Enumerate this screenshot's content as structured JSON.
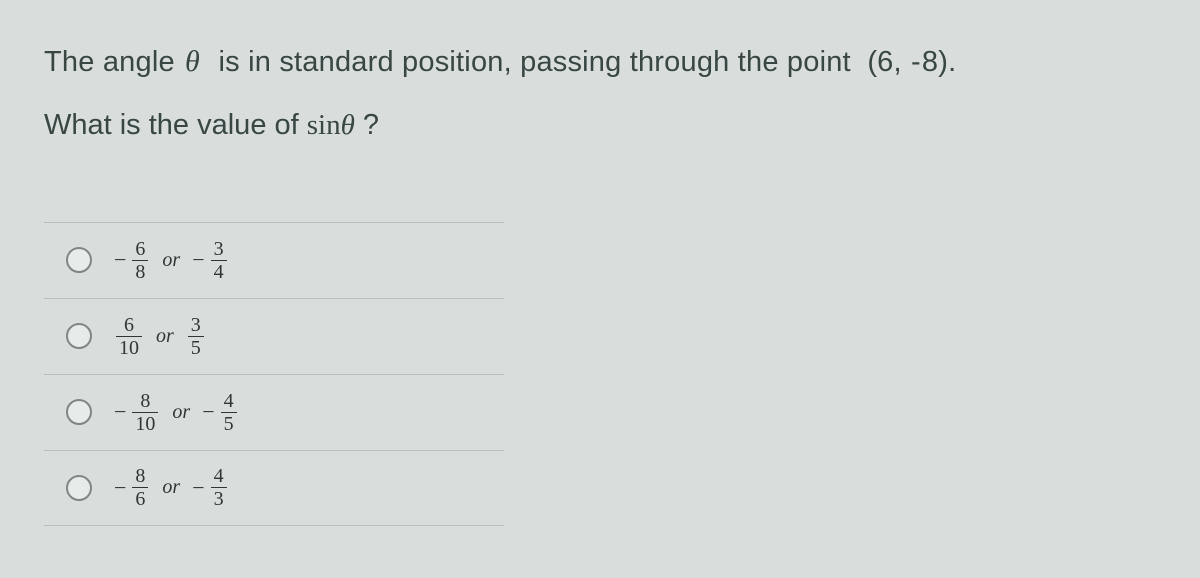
{
  "question": {
    "line1_a": "The angle ",
    "theta": "θ",
    "line1_b": "  is in standard position, passing through the point  ",
    "point_open": "(",
    "point_x": "6",
    "point_sep": ", ",
    "point_y_neg": "-",
    "point_y": "8",
    "point_close": ").",
    "line2_a": "What is the value of ",
    "sin_text": "sin ",
    "qmark": " ?"
  },
  "or_label": "or",
  "options": [
    {
      "first_neg": true,
      "first_num": "6",
      "first_den": "8",
      "second_neg": true,
      "second_num": "3",
      "second_den": "4"
    },
    {
      "first_neg": false,
      "first_num": "6",
      "first_den": "10",
      "second_neg": false,
      "second_num": "3",
      "second_den": "5"
    },
    {
      "first_neg": true,
      "first_num": "8",
      "first_den": "10",
      "second_neg": true,
      "second_num": "4",
      "second_den": "5"
    },
    {
      "first_neg": true,
      "first_num": "8",
      "first_den": "6",
      "second_neg": true,
      "second_num": "4",
      "second_den": "3"
    }
  ],
  "colors": {
    "background": "#d9dedd",
    "text": "#384644",
    "rule": "#b8bfbd",
    "radio_border": "#7e8785"
  }
}
